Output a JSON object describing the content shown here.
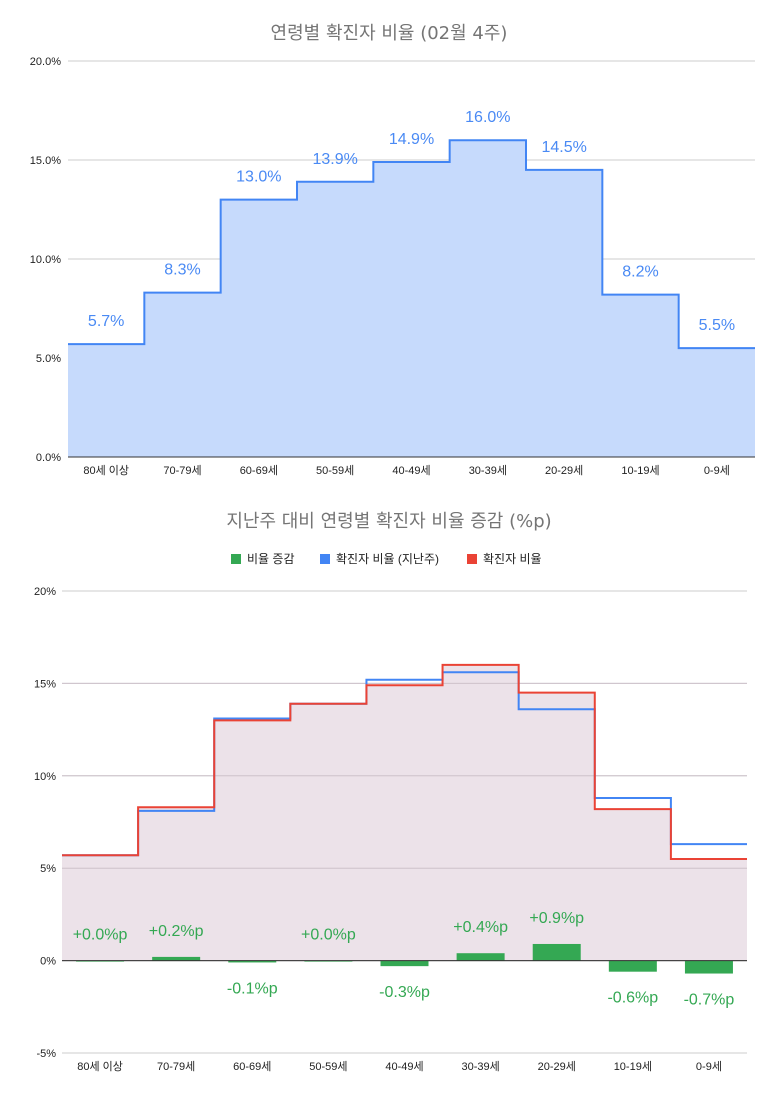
{
  "chart_data": [
    {
      "type": "area",
      "title": "연령별 확진자 비율 (02월 4주)",
      "categories": [
        "80세 이상",
        "70-79세",
        "60-69세",
        "50-59세",
        "40-49세",
        "30-39세",
        "20-29세",
        "10-19세",
        "0-9세"
      ],
      "values": [
        5.7,
        8.3,
        13.0,
        13.9,
        14.9,
        16.0,
        14.5,
        8.2,
        5.5
      ],
      "data_labels": [
        "5.7%",
        "8.3%",
        "13.0%",
        "13.9%",
        "14.9%",
        "16.0%",
        "14.5%",
        "8.2%",
        "5.5%"
      ],
      "ylim": [
        0,
        20
      ],
      "yticks": [
        "0.0%",
        "5.0%",
        "10.0%",
        "15.0%",
        "20.0%"
      ],
      "grid": true,
      "colors": {
        "line": "#4285f4",
        "fill": "#c6dafc"
      }
    },
    {
      "type": "bar",
      "title": "지난주 대비 연령별 확진자 비율 증감 (%p)",
      "categories": [
        "80세 이상",
        "70-79세",
        "60-69세",
        "50-59세",
        "40-49세",
        "30-39세",
        "20-29세",
        "10-19세",
        "0-9세"
      ],
      "legend_position": "top",
      "ylim": [
        -5,
        20
      ],
      "yticks": [
        "-5%",
        "0%",
        "5%",
        "10%",
        "15%",
        "20%"
      ],
      "grid": true,
      "series": [
        {
          "name": "비율 증감",
          "type": "bar",
          "color": "#34a853",
          "values": [
            0.0,
            0.2,
            -0.1,
            0.0,
            -0.3,
            0.4,
            0.9,
            -0.6,
            -0.7
          ],
          "data_labels": [
            "+0.0%p",
            "+0.2%p",
            "-0.1%p",
            "+0.0%p",
            "-0.3%p",
            "+0.4%p",
            "+0.9%p",
            "-0.6%p",
            "-0.7%p"
          ]
        },
        {
          "name": "확진자 비율 (지난주)",
          "type": "step",
          "color": "#4285f4",
          "values": [
            5.7,
            8.1,
            13.1,
            13.9,
            15.2,
            15.6,
            13.6,
            8.8,
            6.3
          ]
        },
        {
          "name": "확진자 비율",
          "type": "step",
          "color": "#ea4335",
          "values": [
            5.7,
            8.3,
            13.0,
            13.9,
            14.9,
            16.0,
            14.5,
            8.2,
            5.5
          ]
        }
      ]
    }
  ]
}
